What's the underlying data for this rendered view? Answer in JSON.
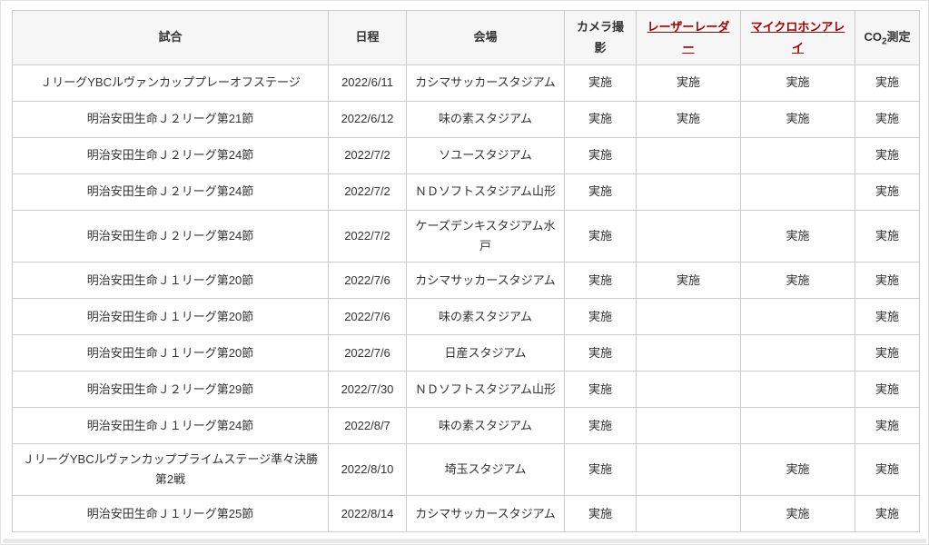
{
  "page": {
    "text_color": "#333333",
    "link_color": "#990000",
    "border_color": "#cccccc",
    "header_bg": "#f6f6f6"
  },
  "table": {
    "columns": [
      {
        "key": "match",
        "label": "試合",
        "link": false
      },
      {
        "key": "date",
        "label": "日程",
        "link": false
      },
      {
        "key": "venue",
        "label": "会場",
        "link": false
      },
      {
        "key": "camera",
        "label": "カメラ撮影",
        "link": false
      },
      {
        "key": "laser-radar",
        "label": "レーザーレーダー",
        "link": true
      },
      {
        "key": "microphone-array",
        "label": "マイクロホンアレイ",
        "link": true
      },
      {
        "key": "co2",
        "label": "CO2測定",
        "link": false,
        "co2": true
      }
    ],
    "co2_header": {
      "pre": "CO",
      "sub": "2",
      "post": "測定"
    },
    "implemented_label": "実施",
    "rows": [
      [
        "ＪリーグYBCルヴァンカッププレーオフステージ",
        "2022/6/11",
        "カシマサッカースタジアム",
        "実施",
        "実施",
        "実施",
        "実施"
      ],
      [
        "明治安田生命Ｊ２リーグ第21節",
        "2022/6/12",
        "味の素スタジアム",
        "実施",
        "実施",
        "実施",
        "実施"
      ],
      [
        "明治安田生命Ｊ２リーグ第24節",
        "2022/7/2",
        "ソユースタジアム",
        "実施",
        "",
        "",
        "実施"
      ],
      [
        "明治安田生命Ｊ２リーグ第24節",
        "2022/7/2",
        "ＮＤソフトスタジアム山形",
        "実施",
        "",
        "",
        "実施"
      ],
      [
        "明治安田生命Ｊ２リーグ第24節",
        "2022/7/2",
        "ケーズデンキスタジアム水戸",
        "実施",
        "",
        "実施",
        "実施"
      ],
      [
        "明治安田生命Ｊ１リーグ第20節",
        "2022/7/6",
        "カシマサッカースタジアム",
        "実施",
        "実施",
        "実施",
        "実施"
      ],
      [
        "明治安田生命Ｊ１リーグ第20節",
        "2022/7/6",
        "味の素スタジアム",
        "実施",
        "",
        "",
        "実施"
      ],
      [
        "明治安田生命Ｊ１リーグ第20節",
        "2022/7/6",
        "日産スタジアム",
        "実施",
        "",
        "",
        "実施"
      ],
      [
        "明治安田生命Ｊ２リーグ第29節",
        "2022/7/30",
        "ＮＤソフトスタジアム山形",
        "実施",
        "",
        "",
        "実施"
      ],
      [
        "明治安田生命Ｊ１リーグ第24節",
        "2022/8/7",
        "味の素スタジアム",
        "実施",
        "",
        "",
        "実施"
      ],
      [
        "ＪリーグYBCルヴァンカッププライムステージ準々決勝第2戦",
        "2022/8/10",
        "埼玉スタジアム",
        "実施",
        "",
        "実施",
        "実施"
      ],
      [
        "明治安田生命Ｊ１リーグ第25節",
        "2022/8/14",
        "カシマサッカースタジアム",
        "実施",
        "",
        "実施",
        "実施"
      ]
    ]
  }
}
